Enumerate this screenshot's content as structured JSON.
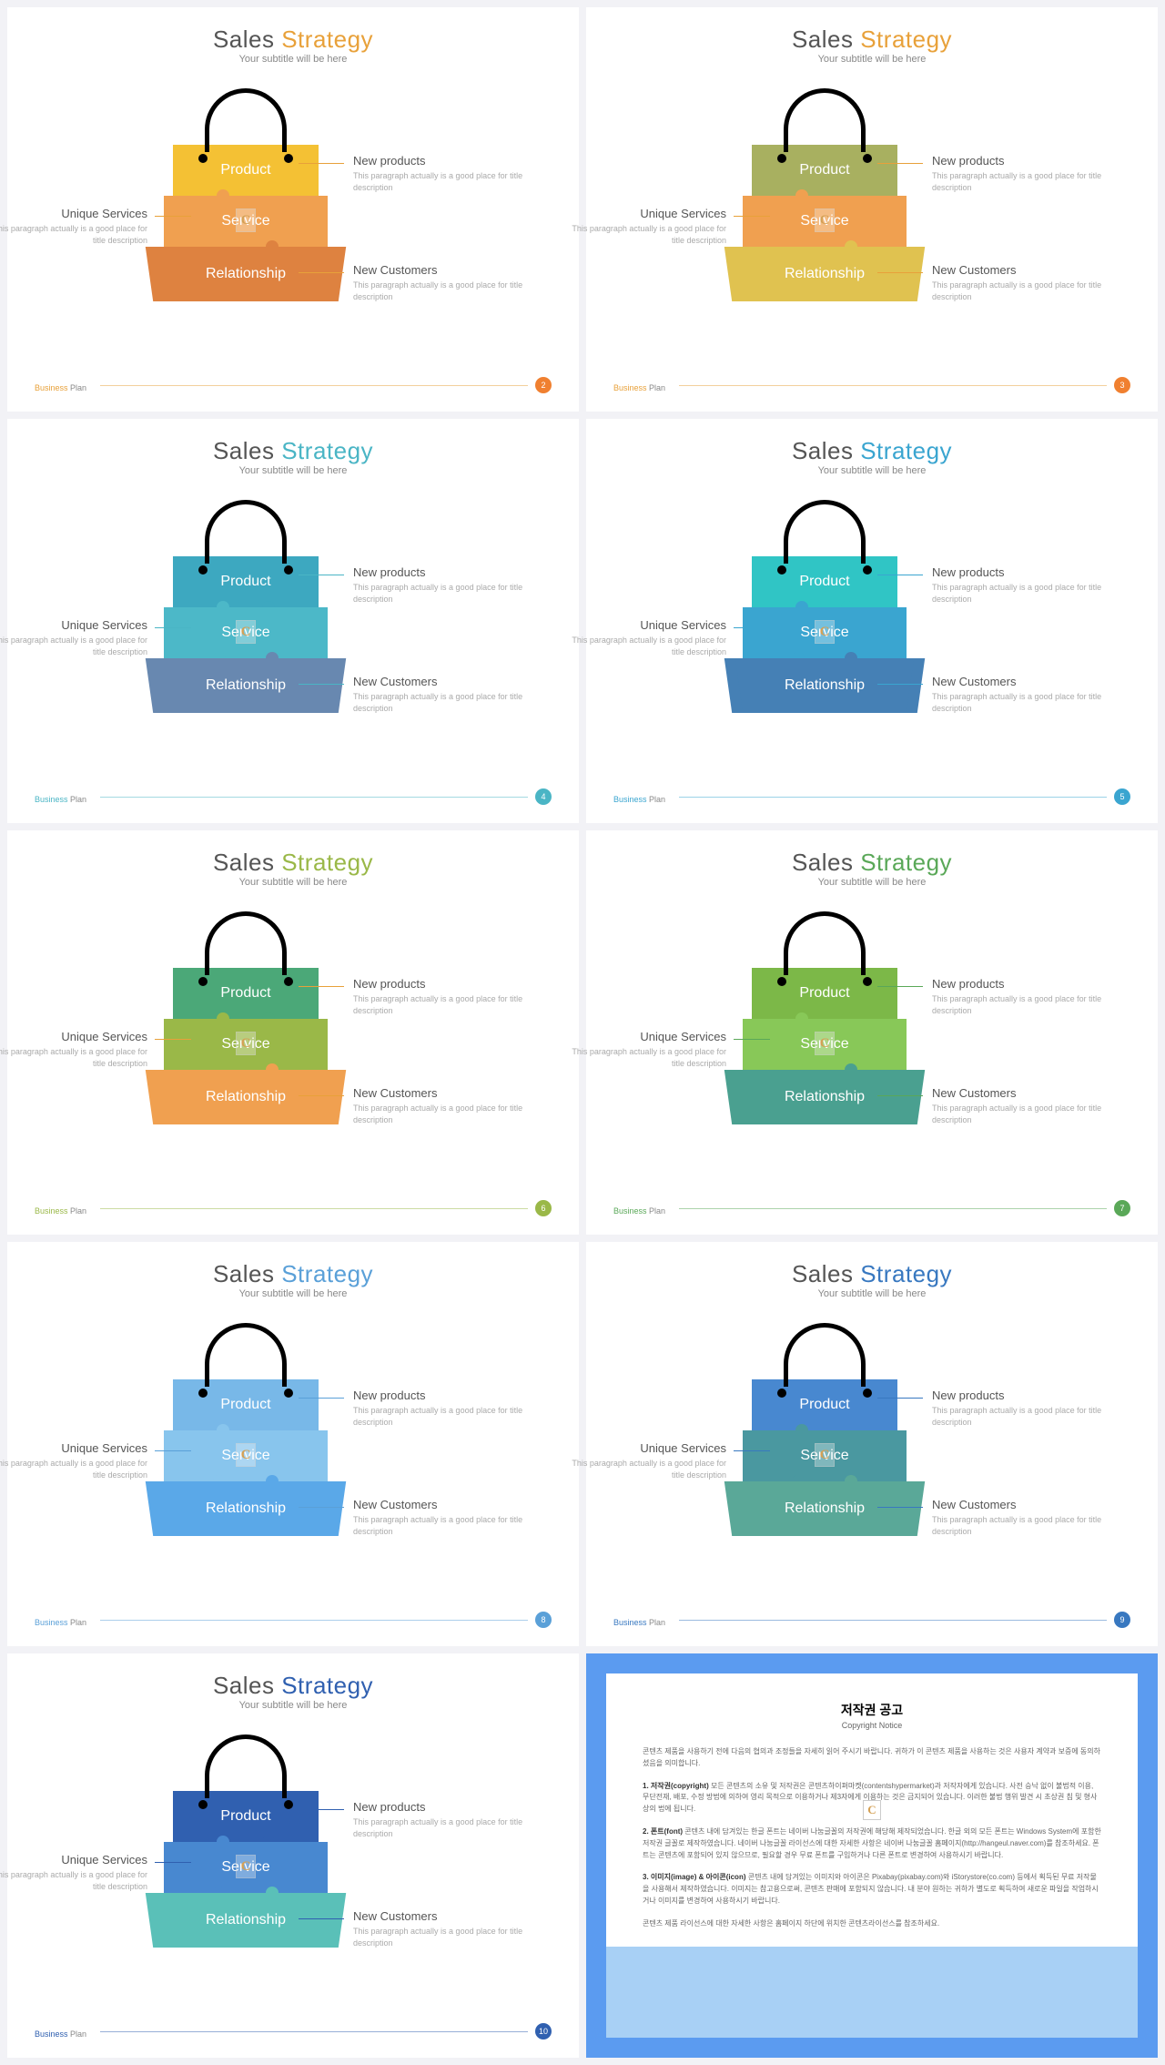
{
  "common": {
    "title_w1": "Sales",
    "title_w2": "Strategy",
    "subtitle": "Your subtitle will be here",
    "seg1_label": "Product",
    "seg2_label": "Service",
    "seg3_label": "Relationship",
    "callout_right1_h": "New products",
    "callout_right2_h": "New Customers",
    "callout_left_h": "Unique Services",
    "callout_desc": "This paragraph  actually is a good place for title description",
    "footer_b": "Business",
    "footer_p": " Plan",
    "logo_letter": "C"
  },
  "slides": [
    {
      "num": "2",
      "accent": "#e8a13a",
      "seg1": "#f4c134",
      "seg2": "#f0a050",
      "seg3": "#de8240",
      "line": "#e8a13a",
      "title2": "#e8a13a",
      "fline": "#e8a13a",
      "fnum_bg": "#f08030"
    },
    {
      "num": "3",
      "accent": "#e8a13a",
      "seg1": "#a8b060",
      "seg2": "#f0a050",
      "seg3": "#e0c250",
      "line": "#e8a13a",
      "title2": "#e8a13a",
      "fline": "#e8a13a",
      "fnum_bg": "#f08030"
    },
    {
      "num": "4",
      "accent": "#4ab5c5",
      "seg1": "#3da8c0",
      "seg2": "#4cb8c8",
      "seg3": "#6888b0",
      "line": "#4ab5c5",
      "title2": "#4ab5c5",
      "fline": "#4ab5c5",
      "fnum_bg": "#4ab5c5"
    },
    {
      "num": "5",
      "accent": "#3aa5d0",
      "seg1": "#30c5c5",
      "seg2": "#3aa5d0",
      "seg3": "#4580b5",
      "line": "#3aa5d0",
      "title2": "#3aa5d0",
      "fline": "#3aa5d0",
      "fnum_bg": "#3aa5d0"
    },
    {
      "num": "6",
      "accent": "#9ab848",
      "seg1": "#4ba878",
      "seg2": "#9ab848",
      "seg3": "#f0a050",
      "line": "#e8a13a",
      "title2": "#9ab848",
      "fline": "#9ab848",
      "fnum_bg": "#9ab848"
    },
    {
      "num": "7",
      "accent": "#5aa858",
      "seg1": "#7cb848",
      "seg2": "#88c858",
      "seg3": "#4aa090",
      "line": "#5aa858",
      "title2": "#5aa858",
      "fline": "#5aa858",
      "fnum_bg": "#5aa858"
    },
    {
      "num": "8",
      "accent": "#5aa0d8",
      "seg1": "#78b8e8",
      "seg2": "#88c5ed",
      "seg3": "#5aa8e8",
      "line": "#5aa0d8",
      "title2": "#5aa0d8",
      "fline": "#5aa0d8",
      "fnum_bg": "#5aa0d8"
    },
    {
      "num": "9",
      "accent": "#3878c0",
      "seg1": "#4888d0",
      "seg2": "#4a98a0",
      "seg3": "#5aa898",
      "line": "#3878c0",
      "title2": "#3878c0",
      "fline": "#3878c0",
      "fnum_bg": "#3878c0"
    },
    {
      "num": "10",
      "accent": "#3060b0",
      "seg1": "#3060b0",
      "seg2": "#4888d0",
      "seg3": "#5ac0b8",
      "line": "#3060b0",
      "title2": "#3060b0",
      "fline": "#3060b0",
      "fnum_bg": "#3060b0"
    }
  ],
  "notice": {
    "border": "#5b9bf0",
    "bottom": "#a8d0f5",
    "title": "저작권 공고",
    "subtitle": "Copyright Notice",
    "intro": "콘텐츠 제품을 사용하기 전에 다음의 협의과 조정들을 자세히 읽어 주시기 바랍니다. 귀하가 이 콘텐츠 제품을 사용하는 것은 사용자 계약과 보증에 동의하셨음을 의미합니다.",
    "p1_h": "1. 저작권(copyright)",
    "p1": " 모든 콘텐츠의 소유 및 저작권은 콘텐츠하이퍼마켓(contentshypermarket)과 저작자에게 있습니다. 사전 승낙 없이 불법적 이용, 무단전재, 배포, 수정 방법에 의하여 영리 목적으로 이용하거나 제3자에게 이용하는 것은 금지되어 있습니다. 이러한 불법 행위 발견 시 초상권 침 및 형사상의 법에 됩니다.",
    "p2_h": "2. 폰트(font)",
    "p2": " 콘텐츠 내에 담겨있는 한글 폰트는 네이버 나눔글꼴의 저작권에 해당해 제작되었습니다. 한글 외의 모든 폰트는 Windows System에 포함한 저작권 글꼴로 제작하였습니다. 네이버 나눔글꼴 라이선스에 대한 자세한 사항은 네이버 나눔글꼴 홈페이지(http://hangeul.naver.com)를 참조하세요. 폰트는 콘텐츠에 포함되어 있지 않으므로, 필요할 경우 무료 폰트를 구입하거나 다른 폰트로 변경하여 사용하시기 바랍니다.",
    "p3_h": "3. 이미지(image) & 아이콘(icon)",
    "p3": " 콘텐츠 내에 담겨있는 이미지와 아이콘은 Pixabay(pixabay.com)와 iStorystore(co.com) 등에서 획득된 무료 저작물을 사용해서 제작하였습니다. 이미지는 참고용으로써, 콘텐츠 판매에 포함되지 않습니다. 내 분야 원하는 귀하가 별도로 획득하여 새로운 파일을 작업하시거나 이미지를 변경하여 사용하시기 바랍니다.",
    "outro": "콘텐츠 제품 라이선스에 대한 자세한 사항은 홈페이지 하단에 위치한 콘텐츠라이선스를 참조하세요."
  }
}
